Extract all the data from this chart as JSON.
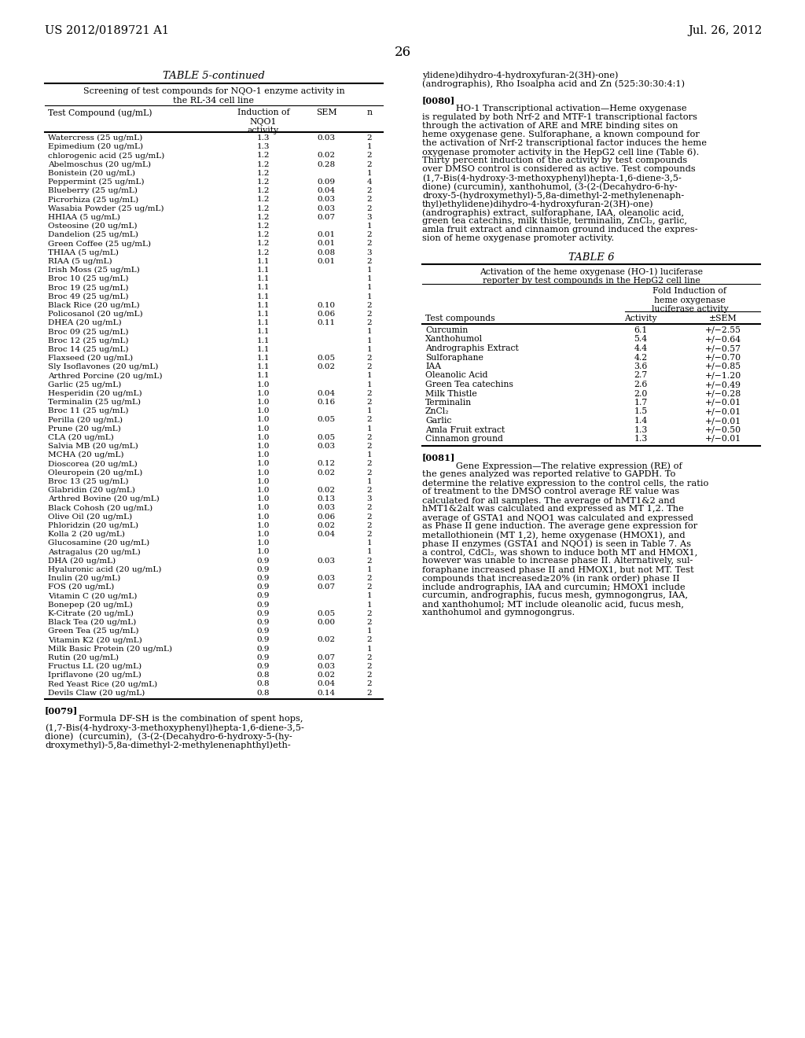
{
  "page_header_left": "US 2012/0189721 A1",
  "page_header_right": "Jul. 26, 2012",
  "page_number": "26",
  "table5_title": "TABLE 5-continued",
  "table5_subtitle": "Screening of test compounds for NQO-1 enzyme activity in\nthe RL-34 cell line",
  "table5_data": [
    [
      "Watercress (25 ug/mL)",
      "1.3",
      "0.03",
      "2"
    ],
    [
      "Epimedium (20 ug/mL)",
      "1.3",
      "",
      "1"
    ],
    [
      "chlorogenic acid (25 ug/mL)",
      "1.2",
      "0.02",
      "2"
    ],
    [
      "Abelmoschus (20 ug/mL)",
      "1.2",
      "0.28",
      "2"
    ],
    [
      "Bonistein (20 ug/mL)",
      "1.2",
      "",
      "1"
    ],
    [
      "Peppermint (25 ug/mL)",
      "1.2",
      "0.09",
      "4"
    ],
    [
      "Blueberry (25 ug/mL)",
      "1.2",
      "0.04",
      "2"
    ],
    [
      "Picrorhiza (25 ug/mL)",
      "1.2",
      "0.03",
      "2"
    ],
    [
      "Wasabia Powder (25 ug/mL)",
      "1.2",
      "0.03",
      "2"
    ],
    [
      "HHIAA (5 ug/mL)",
      "1.2",
      "0.07",
      "3"
    ],
    [
      "Osteosine (20 ug/mL)",
      "1.2",
      "",
      "1"
    ],
    [
      "Dandelion (25 ug/mL)",
      "1.2",
      "0.01",
      "2"
    ],
    [
      "Green Coffee (25 ug/mL)",
      "1.2",
      "0.01",
      "2"
    ],
    [
      "THIAA (5 ug/mL)",
      "1.2",
      "0.08",
      "3"
    ],
    [
      "RIAA (5 ug/mL)",
      "1.1",
      "0.01",
      "2"
    ],
    [
      "Irish Moss (25 ug/mL)",
      "1.1",
      "",
      "1"
    ],
    [
      "Broc 10 (25 ug/mL)",
      "1.1",
      "",
      "1"
    ],
    [
      "Broc 19 (25 ug/mL)",
      "1.1",
      "",
      "1"
    ],
    [
      "Broc 49 (25 ug/mL)",
      "1.1",
      "",
      "1"
    ],
    [
      "Black Rice (20 ug/mL)",
      "1.1",
      "0.10",
      "2"
    ],
    [
      "Policosanol (20 ug/mL)",
      "1.1",
      "0.06",
      "2"
    ],
    [
      "DHEA (20 ug/mL)",
      "1.1",
      "0.11",
      "2"
    ],
    [
      "Broc 09 (25 ug/mL)",
      "1.1",
      "",
      "1"
    ],
    [
      "Broc 12 (25 ug/mL)",
      "1.1",
      "",
      "1"
    ],
    [
      "Broc 14 (25 ug/mL)",
      "1.1",
      "",
      "1"
    ],
    [
      "Flaxseed (20 ug/mL)",
      "1.1",
      "0.05",
      "2"
    ],
    [
      "Sly Isoflavones (20 ug/mL)",
      "1.1",
      "0.02",
      "2"
    ],
    [
      "Arthred Porcine (20 ug/mL)",
      "1.1",
      "",
      "1"
    ],
    [
      "Garlic (25 ug/mL)",
      "1.0",
      "",
      "1"
    ],
    [
      "Hesperidin (20 ug/mL)",
      "1.0",
      "0.04",
      "2"
    ],
    [
      "Terminalin (25 ug/mL)",
      "1.0",
      "0.16",
      "2"
    ],
    [
      "Broc 11 (25 ug/mL)",
      "1.0",
      "",
      "1"
    ],
    [
      "Perilla (20 ug/mL)",
      "1.0",
      "0.05",
      "2"
    ],
    [
      "Prune (20 ug/mL)",
      "1.0",
      "",
      "1"
    ],
    [
      "CLA (20 ug/mL)",
      "1.0",
      "0.05",
      "2"
    ],
    [
      "Salvia MB (20 ug/mL)",
      "1.0",
      "0.03",
      "2"
    ],
    [
      "MCHA (20 ug/mL)",
      "1.0",
      "",
      "1"
    ],
    [
      "Dioscorea (20 ug/mL)",
      "1.0",
      "0.12",
      "2"
    ],
    [
      "Oleuropein (20 ug/mL)",
      "1.0",
      "0.02",
      "2"
    ],
    [
      "Broc 13 (25 ug/mL)",
      "1.0",
      "",
      "1"
    ],
    [
      "Glabridin (20 ug/mL)",
      "1.0",
      "0.02",
      "2"
    ],
    [
      "Arthred Bovine (20 ug/mL)",
      "1.0",
      "0.13",
      "3"
    ],
    [
      "Black Cohosh (20 ug/mL)",
      "1.0",
      "0.03",
      "2"
    ],
    [
      "Olive Oil (20 ug/mL)",
      "1.0",
      "0.06",
      "2"
    ],
    [
      "Phloridzin (20 ug/mL)",
      "1.0",
      "0.02",
      "2"
    ],
    [
      "Kolla 2 (20 ug/mL)",
      "1.0",
      "0.04",
      "2"
    ],
    [
      "Glucosamine (20 ug/mL)",
      "1.0",
      "",
      "1"
    ],
    [
      "Astragalus (20 ug/mL)",
      "1.0",
      "",
      "1"
    ],
    [
      "DHA (20 ug/mL)",
      "0.9",
      "0.03",
      "2"
    ],
    [
      "Hyaluronic acid (20 ug/mL)",
      "0.9",
      "",
      "1"
    ],
    [
      "Inulin (20 ug/mL)",
      "0.9",
      "0.03",
      "2"
    ],
    [
      "FOS (20 ug/mL)",
      "0.9",
      "0.07",
      "2"
    ],
    [
      "Vitamin C (20 ug/mL)",
      "0.9",
      "",
      "1"
    ],
    [
      "Bonepep (20 ug/mL)",
      "0.9",
      "",
      "1"
    ],
    [
      "K-Citrate (20 ug/mL)",
      "0.9",
      "0.05",
      "2"
    ],
    [
      "Black Tea (20 ug/mL)",
      "0.9",
      "0.00",
      "2"
    ],
    [
      "Green Tea (25 ug/mL)",
      "0.9",
      "",
      "1"
    ],
    [
      "Vitamin K2 (20 ug/mL)",
      "0.9",
      "0.02",
      "2"
    ],
    [
      "Milk Basic Protein (20 ug/mL)",
      "0.9",
      "",
      "1"
    ],
    [
      "Rutin (20 ug/mL)",
      "0.9",
      "0.07",
      "2"
    ],
    [
      "Fructus LL (20 ug/mL)",
      "0.9",
      "0.03",
      "2"
    ],
    [
      "Ipriflavone (20 ug/mL)",
      "0.8",
      "0.02",
      "2"
    ],
    [
      "Red Yeast Rice (20 ug/mL)",
      "0.8",
      "0.04",
      "2"
    ],
    [
      "Devils Claw (20 ug/mL)",
      "0.8",
      "0.14",
      "2"
    ]
  ],
  "para0079_lines": [
    [
      "[0079]",
      "bold",
      0
    ],
    [
      "   Formula DF-SH is the combination of spent hops,",
      "normal",
      32
    ],
    [
      "(1,7-Bis(4-hydroxy-3-methoxyphenyl)hepta-1,6-diene-3,5-",
      "normal",
      0
    ],
    [
      "dione)  (curcumin),  (3-(2-(Decahydro-6-hydroxy-5-(hy-",
      "normal",
      0
    ],
    [
      "droxymethyl)-5,8a-dimethyl-2-methylenenaphthyl)eth-",
      "normal",
      0
    ]
  ],
  "right_col_top_lines": [
    "ylidene)dihydro-4-hydroxyfuran-2(3H)-one)",
    "(andrographis), Rho Isoalpha acid and Zn (525:30:30:4:1)"
  ],
  "para0080_lines": [
    [
      "[0080]",
      "bold",
      0
    ],
    [
      "   HO-1 Transcriptional activation—Heme oxygenase",
      "normal",
      32
    ],
    [
      "is regulated by both Nrf-2 and MTF-1 transcriptional factors",
      "normal",
      0
    ],
    [
      "through the activation of ARE and MRE binding sites on",
      "normal",
      0
    ],
    [
      "heme oxygenase gene. Sulforaphane, a known compound for",
      "normal",
      0
    ],
    [
      "the activation of Nrf-2 transcriptional factor induces the heme",
      "normal",
      0
    ],
    [
      "oxygenase promoter activity in the HepG2 cell line (Table 6).",
      "normal",
      0
    ],
    [
      "Thirty percent induction of the activity by test compounds",
      "normal",
      0
    ],
    [
      "over DMSO control is considered as active. Test compounds",
      "normal",
      0
    ],
    [
      "(1,7-Bis(4-hydroxy-3-methoxyphenyl)hepta-1,6-diene-3,5-",
      "normal",
      0
    ],
    [
      "dione) (curcumin), xanthohumol, (3-(2-(Decahydro-6-hy-",
      "normal",
      0
    ],
    [
      "droxy-5-(hydroxymethyl)-5,8a-dimethyl-2-methylenenaph-",
      "normal",
      0
    ],
    [
      "thyl)ethylidene)dihydro-4-hydroxyfuran-2(3H)-one)",
      "normal",
      0
    ],
    [
      "(andrographis) extract, sulforaphane, IAA, oleanolic acid,",
      "normal",
      0
    ],
    [
      "green tea catechins, milk thistle, terminalin, ZnCl₂, garlic,",
      "normal",
      0
    ],
    [
      "amla fruit extract and cinnamon ground induced the expres-",
      "normal",
      0
    ],
    [
      "sion of heme oxygenase promoter activity.",
      "normal",
      0
    ]
  ],
  "table6_title": "TABLE 6",
  "table6_subtitle": "Activation of the heme oxygenase (HO-1) luciferase\nreporter by test compounds in the HepG2 cell line",
  "table6_group_header": "Fold Induction of\nheme oxygenase\nluciferase activity",
  "table6_data": [
    [
      "Curcumin",
      "6.1",
      "+/−2.55"
    ],
    [
      "Xanthohumol",
      "5.4",
      "+/−0.64"
    ],
    [
      "Andrographis Extract",
      "4.4",
      "+/−0.57"
    ],
    [
      "Sulforaphane",
      "4.2",
      "+/−0.70"
    ],
    [
      "IAA",
      "3.6",
      "+/−0.85"
    ],
    [
      "Oleanolic Acid",
      "2.7",
      "+/−1.20"
    ],
    [
      "Green Tea catechins",
      "2.6",
      "+/−0.49"
    ],
    [
      "Milk Thistle",
      "2.0",
      "+/−0.28"
    ],
    [
      "Terminalin",
      "1.7",
      "+/−0.01"
    ],
    [
      "ZnCl₂",
      "1.5",
      "+/−0.01"
    ],
    [
      "Garlic",
      "1.4",
      "+/−0.01"
    ],
    [
      "Amla Fruit extract",
      "1.3",
      "+/−0.50"
    ],
    [
      "Cinnamon ground",
      "1.3",
      "+/−0.01"
    ]
  ],
  "para0081_lines": [
    [
      "[0081]",
      "bold",
      0
    ],
    [
      "   Gene Expression—The relative expression (RE) of",
      "normal",
      32
    ],
    [
      "the genes analyzed was reported relative to GAPDH. To",
      "normal",
      0
    ],
    [
      "determine the relative expression to the control cells, the ratio",
      "normal",
      0
    ],
    [
      "of treatment to the DMSO control average RE value was",
      "normal",
      0
    ],
    [
      "calculated for all samples. The average of hMT1&2 and",
      "normal",
      0
    ],
    [
      "hMT1&2alt was calculated and expressed as MT 1,2. The",
      "normal",
      0
    ],
    [
      "average of GSTA1 and NQO1 was calculated and expressed",
      "normal",
      0
    ],
    [
      "as Phase II gene induction. The average gene expression for",
      "normal",
      0
    ],
    [
      "metallothionein (MT 1,2), heme oxygenase (HMOX1), and",
      "normal",
      0
    ],
    [
      "phase II enzymes (GSTA1 and NQO1) is seen in Table 7. As",
      "normal",
      0
    ],
    [
      "a control, CdCl₂, was shown to induce both MT and HMOX1,",
      "normal",
      0
    ],
    [
      "however was unable to increase phase II. Alternatively, sul-",
      "normal",
      0
    ],
    [
      "foraphane increased phase II and HMOX1, but not MT. Test",
      "normal",
      0
    ],
    [
      "compounds that increased≥20% (in rank order) phase II",
      "normal",
      0
    ],
    [
      "include andrographis, IAA and curcumin; HMOX1 include",
      "normal",
      0
    ],
    [
      "curcumin, andrographis, fucus mesh, gymnogongrus, IAA,",
      "normal",
      0
    ],
    [
      "and xanthohumol; MT include oleanolic acid, fucus mesh,",
      "normal",
      0
    ],
    [
      "xanthohumol and gymnogongrus.",
      "normal",
      0
    ]
  ]
}
